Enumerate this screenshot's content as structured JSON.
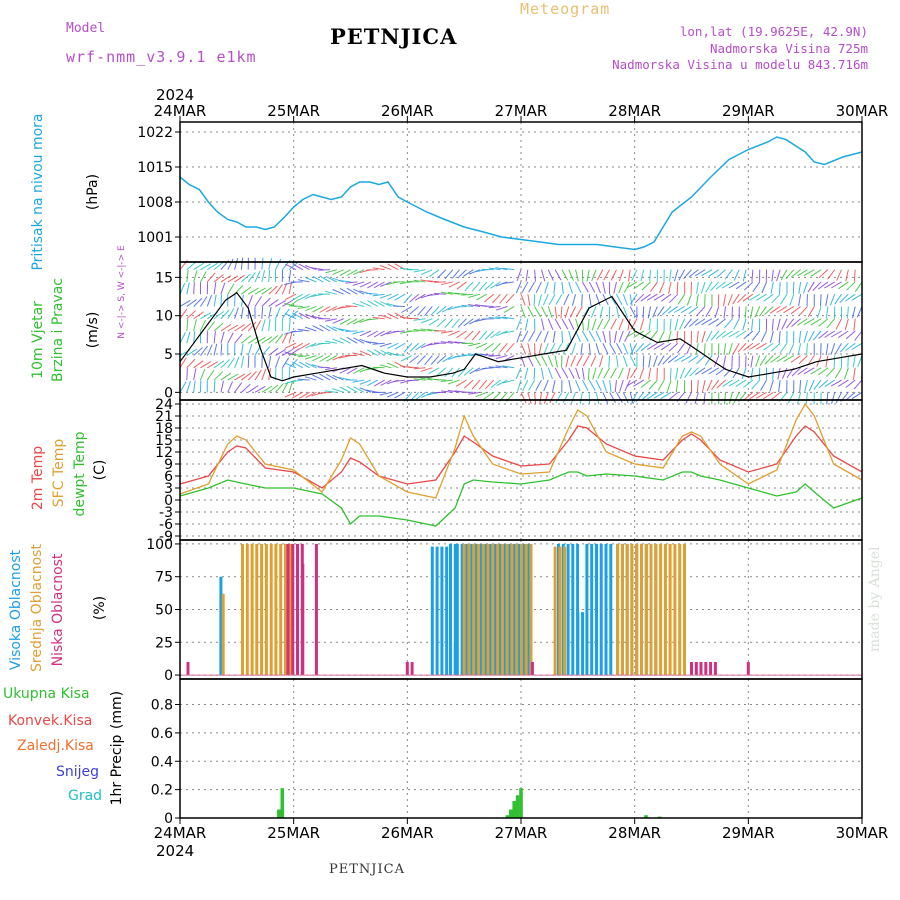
{
  "header": {
    "title": "PETNJICA",
    "meteogram": "Meteogram",
    "model_label": "Model",
    "model_name": "wrf-nmm_v3.9.1  e1km",
    "coords": "lon,lat (19.9625E, 42.9N)",
    "altitude": "Nadmorska Visina 725m",
    "model_altitude": "Nadmorska Visina u modelu 843.716m"
  },
  "footer": {
    "station": "PETNJICA",
    "credit": "made by Angel"
  },
  "colors": {
    "pressure": "#1ba8e0",
    "temp2m": "#e84848",
    "sfc": "#e0a030",
    "dewpt": "#30c030",
    "high_cloud": "#1ba0e8",
    "mid_cloud": "#e0a030",
    "low_cloud": "#d03080",
    "precip": "#30c030",
    "grid": "#888888"
  },
  "chart_data": [
    {
      "panel": "time-axis",
      "type": "axis",
      "year": "2024",
      "ticks": [
        "24MAR",
        "25MAR",
        "26MAR",
        "27MAR",
        "28MAR",
        "29MAR",
        "30MAR"
      ]
    },
    {
      "panel": "pressure",
      "type": "line",
      "ylabel": "Pritisak na nivou mora",
      "unit": "(hPa)",
      "yticks": [
        1001,
        1008,
        1015,
        1022
      ],
      "ylim": [
        996,
        1024
      ],
      "x_day_offset": [
        0,
        0.08,
        0.17,
        0.25,
        0.33,
        0.42,
        0.5,
        0.58,
        0.67,
        0.75,
        0.83,
        0.92,
        1.0,
        1.08,
        1.17,
        1.25,
        1.33,
        1.42,
        1.5,
        1.58,
        1.67,
        1.75,
        1.83,
        1.92,
        2.0,
        2.17,
        2.33,
        2.5,
        2.67,
        2.83,
        3.0,
        3.17,
        3.33,
        3.5,
        3.67,
        3.83,
        4.0,
        4.08,
        4.17,
        4.25,
        4.33,
        4.5,
        4.67,
        4.83,
        5.0,
        5.17,
        5.25,
        5.33,
        5.5,
        5.58,
        5.67,
        5.83,
        6.0
      ],
      "values": [
        1013,
        1011.5,
        1010.5,
        1008,
        1006,
        1004.5,
        1004,
        1003,
        1003,
        1002.5,
        1003,
        1005,
        1007,
        1008.5,
        1009.5,
        1009,
        1008.5,
        1009,
        1011,
        1012,
        1012,
        1011.5,
        1012,
        1009,
        1008,
        1006,
        1004.5,
        1003,
        1002,
        1001,
        1000.5,
        1000,
        999.5,
        999.5,
        999.5,
        999,
        998.5,
        999,
        1000,
        1003,
        1006,
        1009,
        1013,
        1016.5,
        1018.5,
        1020,
        1021,
        1020.5,
        1018,
        1016,
        1015.5,
        1017,
        1018
      ]
    },
    {
      "panel": "wind",
      "type": "line",
      "ylabel": "10m Vjetar Brzina i Pravac",
      "unit": "(m/s)",
      "compass": "N <-|-> S, W <-|-> E",
      "yticks": [
        0,
        5,
        10,
        15
      ],
      "ylim": [
        -1,
        17
      ],
      "x_day_offset": [
        0,
        0.1,
        0.2,
        0.3,
        0.4,
        0.5,
        0.6,
        0.7,
        0.8,
        0.9,
        1.0,
        1.2,
        1.4,
        1.6,
        1.8,
        2.0,
        2.2,
        2.4,
        2.5,
        2.6,
        2.7,
        2.8,
        3.0,
        3.2,
        3.4,
        3.6,
        3.8,
        4.0,
        4.2,
        4.4,
        4.5,
        4.6,
        4.7,
        4.8,
        5.0,
        5.2,
        5.4,
        5.6,
        5.8,
        6.0
      ],
      "values": [
        4,
        6,
        8,
        10,
        12,
        13,
        11,
        6,
        2,
        1.5,
        2,
        2.5,
        3,
        3.5,
        2.5,
        2,
        2,
        2.5,
        3,
        5,
        4.5,
        4,
        4.5,
        5,
        5.5,
        11,
        12.5,
        8,
        6.5,
        7,
        6,
        5,
        4,
        3,
        2,
        2.5,
        3,
        4,
        4.5,
        5
      ]
    },
    {
      "panel": "temperature",
      "type": "line",
      "ylabel": "2m Temp",
      "ylabel2": "SFC Temp",
      "ylabel3": "dewpt Temp",
      "unit": "(C)",
      "yticks": [
        -9,
        -6,
        -3,
        0,
        3,
        6,
        9,
        12,
        15,
        18,
        21,
        24
      ],
      "ylim": [
        -10,
        25
      ],
      "x_day_offset": [
        0,
        0.25,
        0.42,
        0.5,
        0.58,
        0.75,
        1.0,
        1.25,
        1.42,
        1.5,
        1.58,
        1.75,
        2.0,
        2.25,
        2.42,
        2.5,
        2.58,
        2.75,
        3.0,
        3.25,
        3.42,
        3.5,
        3.58,
        3.75,
        4.0,
        4.25,
        4.42,
        4.5,
        4.58,
        4.75,
        5.0,
        5.25,
        5.42,
        5.5,
        5.58,
        5.75,
        6.0
      ],
      "series": [
        {
          "name": "2m Temp",
          "values": [
            4,
            6,
            12,
            13.5,
            13,
            8,
            7,
            3,
            7,
            10.5,
            9.5,
            6,
            4,
            5,
            12,
            16,
            14.5,
            11,
            8.5,
            9,
            15,
            18.5,
            18,
            14,
            11,
            10,
            15,
            16.5,
            15,
            10,
            7,
            9,
            16,
            18.5,
            17,
            11,
            7
          ]
        },
        {
          "name": "SFC Temp",
          "values": [
            1.5,
            4,
            14,
            16,
            15,
            9,
            7.5,
            2,
            10,
            15.5,
            14,
            6,
            2,
            0.5,
            13,
            21,
            16,
            9,
            6.5,
            7,
            18,
            22.5,
            21,
            12,
            9,
            8,
            16,
            17,
            16,
            9,
            4,
            7.5,
            20,
            24,
            21,
            9,
            5
          ]
        },
        {
          "name": "dewpt Temp",
          "values": [
            1,
            3,
            5,
            4.5,
            4,
            3,
            3,
            1.5,
            -2,
            -6,
            -4,
            -4,
            -5,
            -6.5,
            -2,
            4,
            5,
            4.5,
            4,
            5,
            7,
            7,
            6,
            6.5,
            6,
            5,
            7,
            7,
            6,
            5,
            3,
            1,
            2,
            4,
            2,
            -2,
            0.5
          ]
        }
      ]
    },
    {
      "panel": "clouds",
      "type": "bar",
      "ylabel": "Visoka Oblacnost",
      "ylabel2": "Srednja Oblacnost",
      "ylabel3": "Niska Oblacnost",
      "unit": "(%)",
      "yticks": [
        0,
        25,
        50,
        75,
        100
      ],
      "ylim": [
        -3,
        103
      ],
      "series": [
        {
          "name": "Visoka Oblacnost",
          "segments": [
            [
              0.36,
              0.38,
              75
            ],
            [
              0.37,
              0.39,
              62
            ],
            [
              2.22,
              2.38,
              98
            ],
            [
              2.38,
              2.44,
              100
            ],
            [
              2.38,
              2.46,
              25
            ],
            [
              2.44,
              3.1,
              100
            ],
            [
              3.33,
              3.5,
              100
            ],
            [
              3.5,
              3.58,
              48
            ],
            [
              3.58,
              3.8,
              100
            ],
            [
              3.85,
              4.2,
              100
            ]
          ]
        },
        {
          "name": "Srednja Oblacnost",
          "segments": [
            [
              0.38,
              0.4,
              62
            ],
            [
              0.55,
              1.0,
              100
            ],
            [
              2.5,
              3.1,
              100
            ],
            [
              3.3,
              3.4,
              98
            ],
            [
              3.85,
              4.45,
              100
            ]
          ]
        },
        {
          "name": "Niska Oblacnost",
          "segments": [
            [
              0.07,
              0.08,
              10
            ],
            [
              0.95,
              1.1,
              100
            ],
            [
              1.08,
              1.09,
              85
            ],
            [
              1.2,
              1.22,
              100
            ],
            [
              2.0,
              2.05,
              10
            ],
            [
              3.1,
              3.12,
              10
            ],
            [
              4.5,
              4.72,
              10
            ],
            [
              5.0,
              5.02,
              10
            ]
          ]
        }
      ]
    },
    {
      "panel": "precip",
      "type": "bar",
      "ylabel": "1hr Precip",
      "unit": "(mm)",
      "legend": [
        "Ukupna Kisa",
        "Konvek.Kisa",
        "Zaledj.Kisa",
        "Snijeg",
        "Grad"
      ],
      "yticks": [
        0,
        0.2,
        0.4,
        0.6,
        0.8
      ],
      "ylim": [
        0,
        0.98
      ],
      "x_day_offset": [
        0.87,
        0.9,
        2.88,
        2.91,
        2.94,
        2.97,
        3.0,
        4.1,
        4.22
      ],
      "values": [
        0.06,
        0.21,
        0.02,
        0.06,
        0.12,
        0.16,
        0.21,
        0.02,
        0.01
      ]
    }
  ]
}
